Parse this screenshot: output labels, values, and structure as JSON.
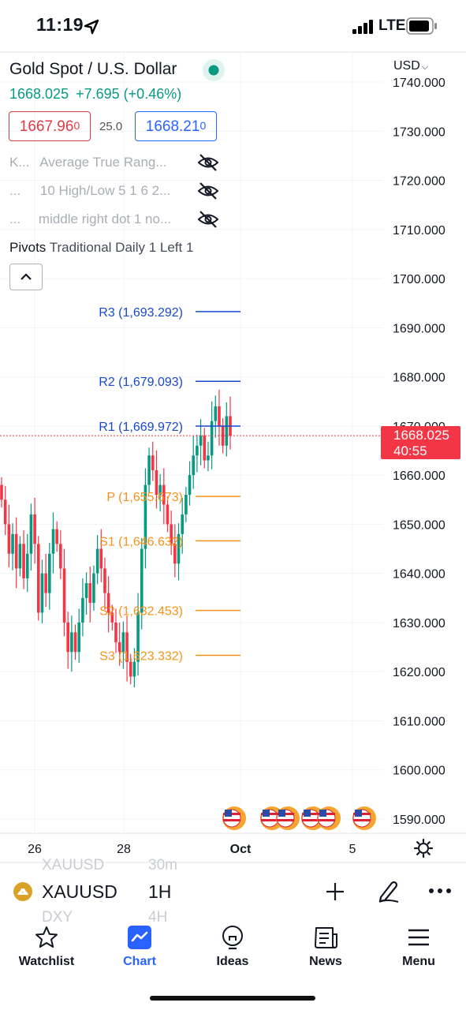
{
  "status_bar": {
    "time": "11:19",
    "network": "LTE"
  },
  "chart": {
    "symbol_title": "Gold Spot / U.S. Dollar",
    "last_price": "1668.025",
    "change": "+7.695",
    "change_pct": "(+0.46%)",
    "bid": {
      "main": "1667.96",
      "sub": "0"
    },
    "spread": "25.0",
    "ask": {
      "main": "1668.21",
      "sub": "0"
    },
    "indicators": [
      {
        "short": "K...",
        "name": "Average True Rang..."
      },
      {
        "short": "...",
        "name": "10 High/Low 5 1 6 2..."
      },
      {
        "short": "...",
        "name": "middle right dot 1 no..."
      }
    ],
    "pivots_legend": {
      "name": "Pivots",
      "params": "Traditional Daily 1 Left 1"
    },
    "currency": "USD",
    "price_tag": {
      "price": "1668.025",
      "countdown": "40:55"
    },
    "colors": {
      "up": "#089981",
      "down": "#f23645",
      "pivot_r": "#1848cc",
      "pivot_s": "#f7931a"
    }
  },
  "chart_data": {
    "type": "candlestick",
    "y_ticks": [
      "1740.000",
      "1730.000",
      "1720.000",
      "1710.000",
      "1700.000",
      "1690.000",
      "1680.000",
      "1670.000",
      "1660.000",
      "1650.000",
      "1640.000",
      "1630.000",
      "1620.000",
      "1610.000",
      "1600.000",
      "1590.000"
    ],
    "x_ticks": [
      "26",
      "28",
      "Oct",
      "5"
    ],
    "ylim": [
      1587,
      1743
    ],
    "pivots": [
      {
        "label": "R3 (1,693.292)",
        "value": 1693.292,
        "kind": "r"
      },
      {
        "label": "R2 (1,679.093)",
        "value": 1679.093,
        "kind": "r"
      },
      {
        "label": "R1 (1,669.972)",
        "value": 1669.972,
        "kind": "r"
      },
      {
        "label": "P (1,655.673)",
        "value": 1655.673,
        "kind": "s"
      },
      {
        "label": "S1 (1,646.632)",
        "value": 1646.632,
        "kind": "s"
      },
      {
        "label": "S2 (1,632.453)",
        "value": 1632.453,
        "kind": "s"
      },
      {
        "label": "S3 (1,623.332)",
        "value": 1623.332,
        "kind": "s"
      }
    ],
    "current_price": 1668.025,
    "closes": [
      1655,
      1650,
      1644,
      1648,
      1641,
      1646,
      1639,
      1644,
      1652,
      1646,
      1632,
      1640,
      1636,
      1644,
      1649,
      1646,
      1641,
      1630,
      1624,
      1628,
      1624,
      1630,
      1635,
      1638,
      1634,
      1640,
      1645,
      1641,
      1636,
      1632,
      1630,
      1626,
      1624,
      1628,
      1622,
      1619,
      1622,
      1632,
      1645,
      1658,
      1664,
      1661,
      1656,
      1658,
      1654,
      1650,
      1646,
      1642,
      1648,
      1652,
      1656,
      1660,
      1664,
      1666,
      1668,
      1663,
      1664,
      1671,
      1674,
      1670,
      1666,
      1672,
      1668
    ]
  },
  "symbol_bar": {
    "ghost_top_symbol": "XAUUSD",
    "ghost_top_interval": "30m",
    "symbol": "XAUUSD",
    "interval": "1H",
    "ghost_bottom_symbol": "DXY",
    "ghost_bottom_interval": "4H"
  },
  "nav": [
    {
      "label": "Watchlist",
      "icon": "star-icon"
    },
    {
      "label": "Chart",
      "icon": "chart-icon"
    },
    {
      "label": "Ideas",
      "icon": "bulb-icon"
    },
    {
      "label": "News",
      "icon": "news-icon"
    },
    {
      "label": "Menu",
      "icon": "hamburger-icon"
    }
  ]
}
